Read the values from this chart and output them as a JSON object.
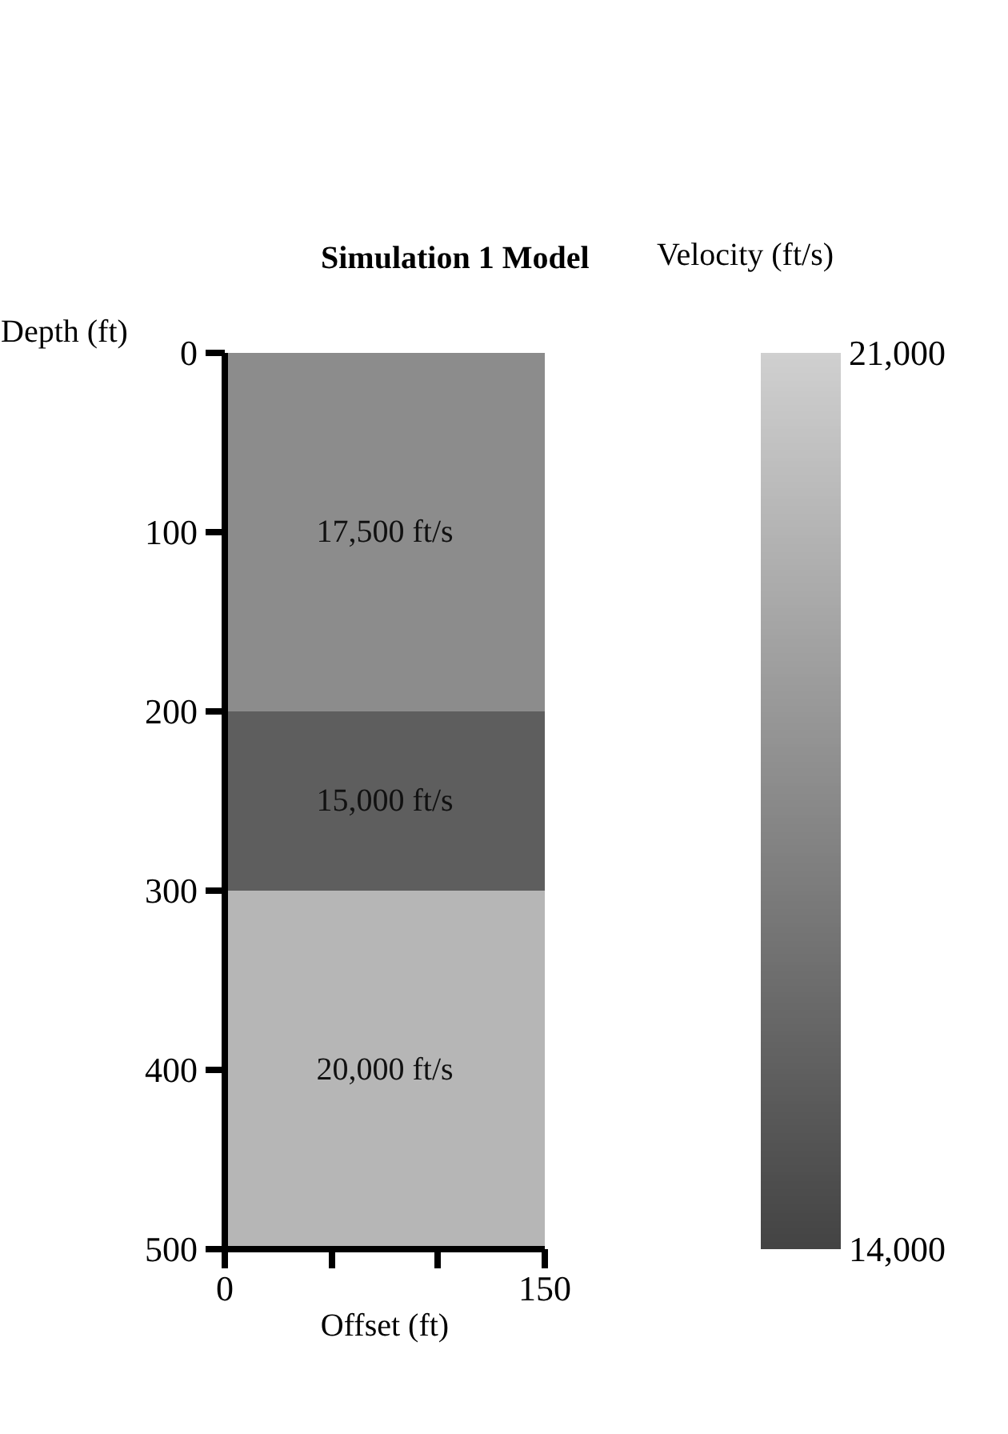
{
  "chart_data": {
    "type": "bar",
    "stacked": true,
    "title": "Simulation 1 Model",
    "xlabel": "Offset (ft)",
    "ylabel": "Depth (ft)",
    "clabel": "Velocity (ft/s)",
    "x": [
      75
    ],
    "xlim": [
      0,
      150
    ],
    "xticks": [
      0,
      {
        "value": 50,
        "label": null
      },
      {
        "value": 100,
        "label": null
      },
      150
    ],
    "ylim": [
      500,
      0
    ],
    "yticks": [
      0,
      100,
      200,
      300,
      400,
      500
    ],
    "clim": [
      14000,
      21000
    ],
    "cticks": [
      {
        "value": 14000,
        "label": "14,000"
      },
      {
        "value": 21000,
        "label": "21,000"
      }
    ],
    "series": [
      {
        "name": "17,500 ft/s",
        "color": "#8c8c8c",
        "values": [
          200
        ]
      },
      {
        "name": "15,000 ft/s",
        "color": "#5e5e5e",
        "values": [
          100
        ]
      },
      {
        "name": "20,000 ft/s",
        "color": "#b6b6b6",
        "values": [
          200
        ]
      }
    ]
  }
}
